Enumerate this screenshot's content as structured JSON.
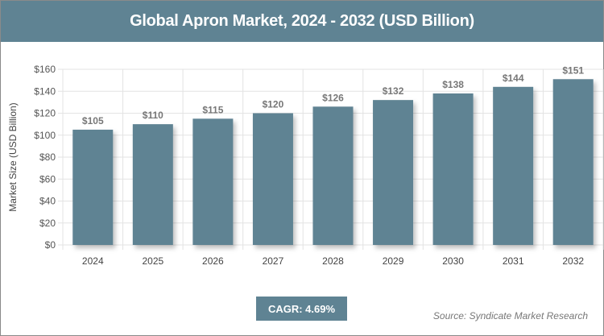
{
  "title": "Global Apron Market, 2024 - 2032 (USD Billion)",
  "cagr": "CAGR: 4.69%",
  "source": "Source: Syndicate Market Research",
  "colors": {
    "bar": "#5f8393",
    "header": "#5f8393"
  },
  "chart_data": {
    "type": "bar",
    "title": "Global Apron Market, 2024 - 2032 (USD Billion)",
    "xlabel": "",
    "ylabel": "Market Size (USD Billion)",
    "categories": [
      "2024",
      "2025",
      "2026",
      "2027",
      "2028",
      "2029",
      "2030",
      "2031",
      "2032"
    ],
    "values": [
      105,
      110,
      115,
      120,
      126,
      132,
      138,
      144,
      151
    ],
    "data_labels": [
      "$105",
      "$110",
      "$115",
      "$120",
      "$126",
      "$132",
      "$138",
      "$144",
      "$151"
    ],
    "ylim": [
      0,
      160
    ],
    "yticks": [
      "$0",
      "$20",
      "$40",
      "$60",
      "$80",
      "$100",
      "$120",
      "$140",
      "$160"
    ],
    "grid": true,
    "legend": "none"
  }
}
